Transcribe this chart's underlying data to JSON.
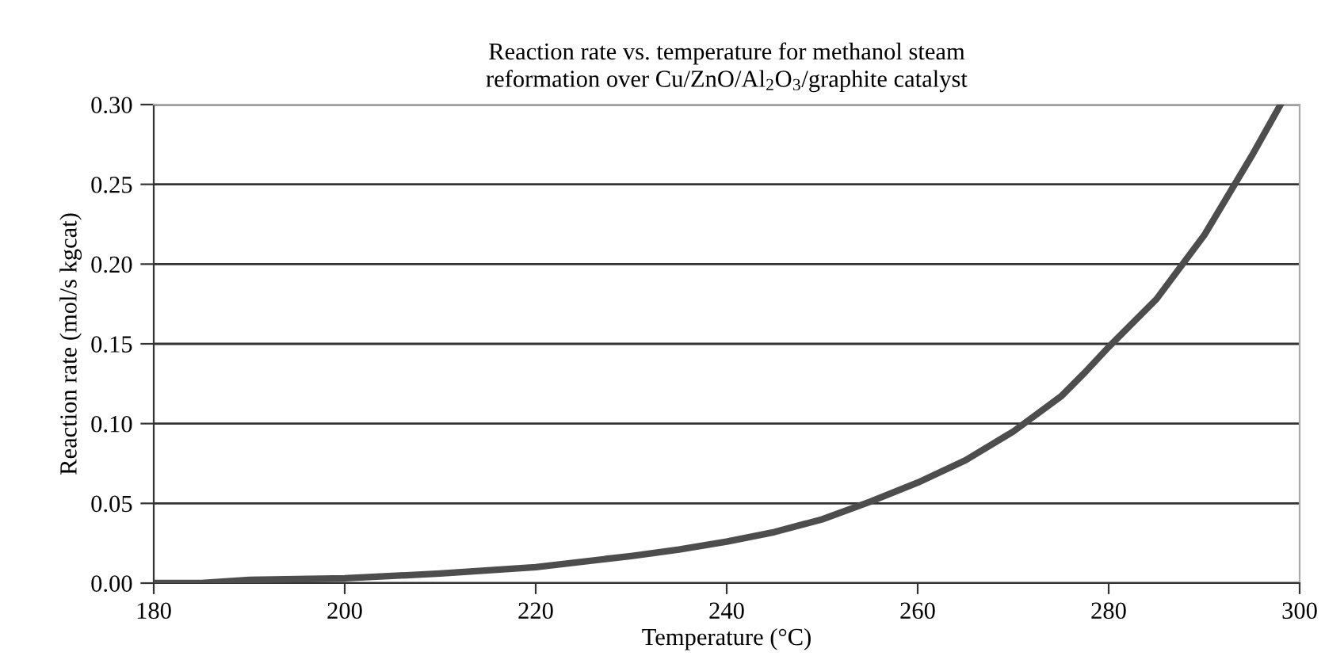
{
  "chart_data": {
    "type": "line",
    "title": "Reaction rate vs. temperature for methanol steam\nreformation over Cu/ZnO/Al$_{2}$O$_{3}$/graphite catalyst",
    "xlabel": "Temperature (°C)",
    "ylabel": "Reaction rate (mol/s kgcat)",
    "x": [
      180,
      185,
      190,
      200,
      210,
      220,
      230,
      235,
      240,
      245,
      250,
      255,
      260,
      265,
      270,
      275,
      277.5,
      280,
      285,
      290,
      295,
      298
    ],
    "series": [
      {
        "color": "#4d4d4d",
        "values": [
          0,
          0,
          0.002,
          0.003,
          0.006,
          0.01,
          0.017,
          0.021,
          0.026,
          0.032,
          0.04,
          0.051,
          0.063,
          0.077,
          0.095,
          0.117,
          0.132,
          0.148,
          0.178,
          0.218,
          0.268,
          0.3
        ]
      }
    ],
    "xlim": [
      180,
      300
    ],
    "ylim": [
      0,
      0.3
    ],
    "xticks": [
      180,
      200,
      220,
      240,
      260,
      280,
      300
    ],
    "yticks": [
      {
        "value": 0,
        "label": "0.00"
      },
      {
        "value": 0.05,
        "label": "0.05"
      },
      {
        "value": 0.1,
        "label": "0.10"
      },
      {
        "value": 0.15,
        "label": "0.15"
      },
      {
        "value": 0.2,
        "label": "0.20"
      },
      {
        "value": 0.25,
        "label": "0.25"
      },
      {
        "value": 0.3,
        "label": "0.30"
      }
    ],
    "grid": "y",
    "marker": "none",
    "line_style": "solid"
  }
}
